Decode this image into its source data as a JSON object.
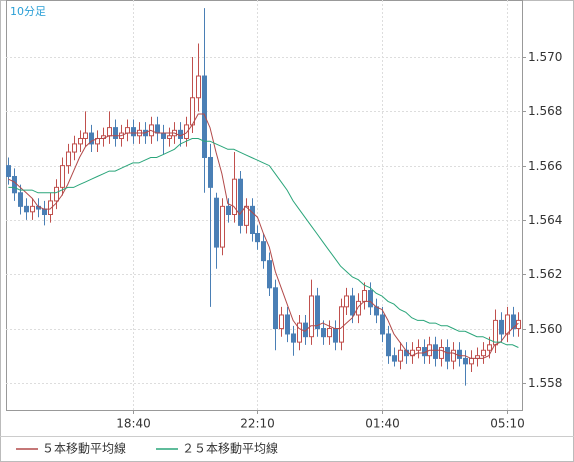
{
  "chart_data": {
    "type": "candlestick",
    "title": "10分足",
    "categories": [
      null,
      null,
      null,
      null,
      null,
      null,
      null,
      null,
      null,
      null,
      null,
      null,
      null,
      null,
      null,
      null,
      null,
      null,
      null,
      null,
      null,
      "18:40",
      null,
      null,
      null,
      null,
      null,
      null,
      null,
      null,
      null,
      null,
      null,
      null,
      null,
      null,
      null,
      null,
      null,
      null,
      null,
      null,
      "22:10",
      null,
      null,
      null,
      null,
      null,
      null,
      null,
      null,
      null,
      null,
      null,
      null,
      null,
      null,
      null,
      null,
      null,
      null,
      null,
      null,
      "01:40",
      null,
      null,
      null,
      null,
      null,
      null,
      null,
      null,
      null,
      null,
      null,
      null,
      null,
      null,
      null,
      null,
      null,
      null,
      null,
      null,
      "05:10",
      null,
      null
    ],
    "open": [
      1.566,
      1.5656,
      1.565,
      1.5645,
      1.5643,
      1.5645,
      1.5644,
      1.5642,
      1.5647,
      1.5652,
      1.566,
      1.5665,
      1.5668,
      1.567,
      1.5672,
      1.5668,
      1.567,
      1.5671,
      1.5674,
      1.567,
      1.5672,
      1.5674,
      1.5671,
      1.5673,
      1.5671,
      1.5675,
      1.5672,
      1.567,
      1.5671,
      1.5673,
      1.567,
      1.5675,
      1.5685,
      1.5693,
      1.5663,
      1.5648,
      1.563,
      1.5645,
      1.5642,
      1.5655,
      1.5638,
      1.5645,
      1.5635,
      1.5632,
      1.5625,
      1.5615,
      1.56,
      1.5605,
      1.5598,
      1.5595,
      1.5602,
      1.5597,
      1.5612,
      1.56,
      1.5597,
      1.56,
      1.5595,
      1.5608,
      1.5612,
      1.5605,
      1.561,
      1.5614,
      1.5608,
      1.5605,
      1.5598,
      1.559,
      1.5588,
      1.5592,
      1.559,
      1.5592,
      1.5593,
      1.559,
      1.5594,
      1.5589,
      1.5593,
      1.5588,
      1.5592,
      1.5589,
      1.5587,
      1.5589,
      1.559,
      1.5592,
      1.5594,
      1.5603,
      1.5598,
      1.5605,
      1.56
    ],
    "high": [
      1.5663,
      1.5659,
      1.5653,
      1.5648,
      1.5648,
      1.5648,
      1.5647,
      1.565,
      1.5655,
      1.5663,
      1.5668,
      1.5671,
      1.5673,
      1.568,
      1.5675,
      1.5673,
      1.5674,
      1.568,
      1.5677,
      1.5675,
      1.5677,
      1.5677,
      1.5676,
      1.5676,
      1.5678,
      1.5678,
      1.5675,
      1.5674,
      1.5676,
      1.5676,
      1.5678,
      1.57,
      1.5705,
      1.5718,
      1.5668,
      1.565,
      1.5648,
      1.5648,
      1.5665,
      1.5658,
      1.5648,
      1.5648,
      1.5638,
      1.5635,
      1.5628,
      1.5618,
      1.5608,
      1.5608,
      1.5601,
      1.5605,
      1.5605,
      1.5618,
      1.5615,
      1.5603,
      1.5603,
      1.5603,
      1.5611,
      1.5615,
      1.5615,
      1.5613,
      1.5617,
      1.5617,
      1.5611,
      1.5608,
      1.5601,
      1.5593,
      1.5595,
      1.5595,
      1.5595,
      1.5596,
      1.5596,
      1.5597,
      1.5597,
      1.5596,
      1.5596,
      1.5595,
      1.5595,
      1.5592,
      1.5592,
      1.5593,
      1.5595,
      1.5597,
      1.5607,
      1.5606,
      1.5608,
      1.5608,
      1.5606
    ],
    "low": [
      1.5653,
      1.5647,
      1.5642,
      1.564,
      1.564,
      1.5641,
      1.5638,
      1.5639,
      1.5644,
      1.5649,
      1.5657,
      1.5662,
      1.5665,
      1.5667,
      1.5665,
      1.5665,
      1.5667,
      1.5668,
      1.5667,
      1.5667,
      1.5669,
      1.5668,
      1.5668,
      1.5668,
      1.5668,
      1.5669,
      1.5664,
      1.5667,
      1.5668,
      1.5667,
      1.5667,
      1.5672,
      1.568,
      1.565,
      1.5608,
      1.5622,
      1.5627,
      1.5639,
      1.5639,
      1.5635,
      1.5635,
      1.5632,
      1.5629,
      1.5622,
      1.5612,
      1.5592,
      1.5597,
      1.5595,
      1.559,
      1.5592,
      1.5594,
      1.5594,
      1.5597,
      1.5594,
      1.5594,
      1.5592,
      1.5592,
      1.5605,
      1.5602,
      1.5602,
      1.5607,
      1.5605,
      1.5602,
      1.5595,
      1.5587,
      1.5586,
      1.5585,
      1.5587,
      1.5587,
      1.5589,
      1.5587,
      1.5587,
      1.5586,
      1.5586,
      1.5585,
      1.5585,
      1.5586,
      1.5579,
      1.5584,
      1.5586,
      1.5587,
      1.5589,
      1.5591,
      1.5595,
      1.5595,
      1.5597,
      1.5597
    ],
    "close": [
      1.5656,
      1.565,
      1.5645,
      1.5643,
      1.5645,
      1.5644,
      1.5642,
      1.5647,
      1.5652,
      1.566,
      1.5665,
      1.5668,
      1.567,
      1.5672,
      1.5668,
      1.567,
      1.5671,
      1.5674,
      1.567,
      1.5672,
      1.5674,
      1.5671,
      1.5673,
      1.5671,
      1.5675,
      1.5672,
      1.567,
      1.5671,
      1.5673,
      1.567,
      1.5675,
      1.5685,
      1.5693,
      1.5663,
      1.5652,
      1.563,
      1.5645,
      1.5642,
      1.5655,
      1.5638,
      1.5645,
      1.5635,
      1.5632,
      1.5625,
      1.5615,
      1.56,
      1.5605,
      1.5598,
      1.5595,
      1.5602,
      1.5597,
      1.5612,
      1.56,
      1.5597,
      1.56,
      1.5595,
      1.5608,
      1.5612,
      1.5605,
      1.561,
      1.5614,
      1.5608,
      1.5605,
      1.5598,
      1.559,
      1.5588,
      1.5592,
      1.559,
      1.5592,
      1.5593,
      1.559,
      1.5594,
      1.5589,
      1.5593,
      1.5588,
      1.5592,
      1.5589,
      1.5587,
      1.5589,
      1.559,
      1.5592,
      1.5594,
      1.5603,
      1.5598,
      1.5605,
      1.56,
      1.5603
    ],
    "up_color": "#c0504d",
    "down_color": "#4a7fb5",
    "series": [
      {
        "name": "５本移動平均線",
        "color": "#b24a4a",
        "values": [
          1.5655,
          1.5654,
          1.5652,
          1.565,
          1.5648,
          1.5645,
          1.5644,
          1.5644,
          1.5646,
          1.5649,
          1.5653,
          1.5658,
          1.5663,
          1.5667,
          1.5669,
          1.567,
          1.567,
          1.5671,
          1.5671,
          1.5671,
          1.5672,
          1.5672,
          1.5672,
          1.5672,
          1.5673,
          1.5672,
          1.5672,
          1.5672,
          1.5672,
          1.5671,
          1.5672,
          1.5675,
          1.5679,
          1.5679,
          1.5674,
          1.5665,
          1.5657,
          1.5646,
          1.5645,
          1.5642,
          1.5645,
          1.5643,
          1.5641,
          1.5635,
          1.563,
          1.5621,
          1.5615,
          1.5609,
          1.5603,
          1.56,
          1.5599,
          1.5601,
          1.5601,
          1.5602,
          1.5601,
          1.56,
          1.56,
          1.5602,
          1.5604,
          1.5608,
          1.561,
          1.561,
          1.5608,
          1.5607,
          1.5603,
          1.5598,
          1.5595,
          1.5592,
          1.559,
          1.5591,
          1.5591,
          1.5592,
          1.5592,
          1.5592,
          1.5591,
          1.5591,
          1.559,
          1.559,
          1.5589,
          1.5589,
          1.5589,
          1.559,
          1.5594,
          1.5595,
          1.5598,
          1.56,
          1.5602
        ]
      },
      {
        "name": "２５本移動平均線",
        "color": "#2aa57a",
        "values": [
          1.5652,
          1.5652,
          1.5651,
          1.5651,
          1.5651,
          1.565,
          1.565,
          1.565,
          1.565,
          1.5651,
          1.5652,
          1.5652,
          1.5653,
          1.5654,
          1.5655,
          1.5656,
          1.5657,
          1.5658,
          1.5658,
          1.5659,
          1.566,
          1.5661,
          1.5661,
          1.5662,
          1.5663,
          1.5663,
          1.5664,
          1.5665,
          1.5666,
          1.5668,
          1.5669,
          1.567,
          1.567,
          1.5669,
          1.5669,
          1.5668,
          1.5667,
          1.5666,
          1.5666,
          1.5665,
          1.5664,
          1.5663,
          1.5662,
          1.5661,
          1.566,
          1.5657,
          1.5654,
          1.5651,
          1.5647,
          1.5644,
          1.5641,
          1.5638,
          1.5635,
          1.5632,
          1.5629,
          1.5626,
          1.5623,
          1.5621,
          1.5619,
          1.5618,
          1.5616,
          1.5615,
          1.5613,
          1.5612,
          1.561,
          1.5609,
          1.5607,
          1.5606,
          1.5604,
          1.5603,
          1.5603,
          1.5602,
          1.5602,
          1.5601,
          1.5601,
          1.56,
          1.5599,
          1.5599,
          1.5598,
          1.5597,
          1.5597,
          1.5596,
          1.5595,
          1.5595,
          1.5594,
          1.5594,
          1.5593
        ]
      }
    ],
    "ylim": [
      1.557,
      1.5721
    ],
    "yticks": [
      {
        "value": 1.558,
        "label": "1.558"
      },
      {
        "value": 1.56,
        "label": "1.560"
      },
      1.562,
      1.564,
      1.566,
      1.568,
      {
        "value": 1.57,
        "label": "1.570"
      }
    ],
    "grid": true
  }
}
